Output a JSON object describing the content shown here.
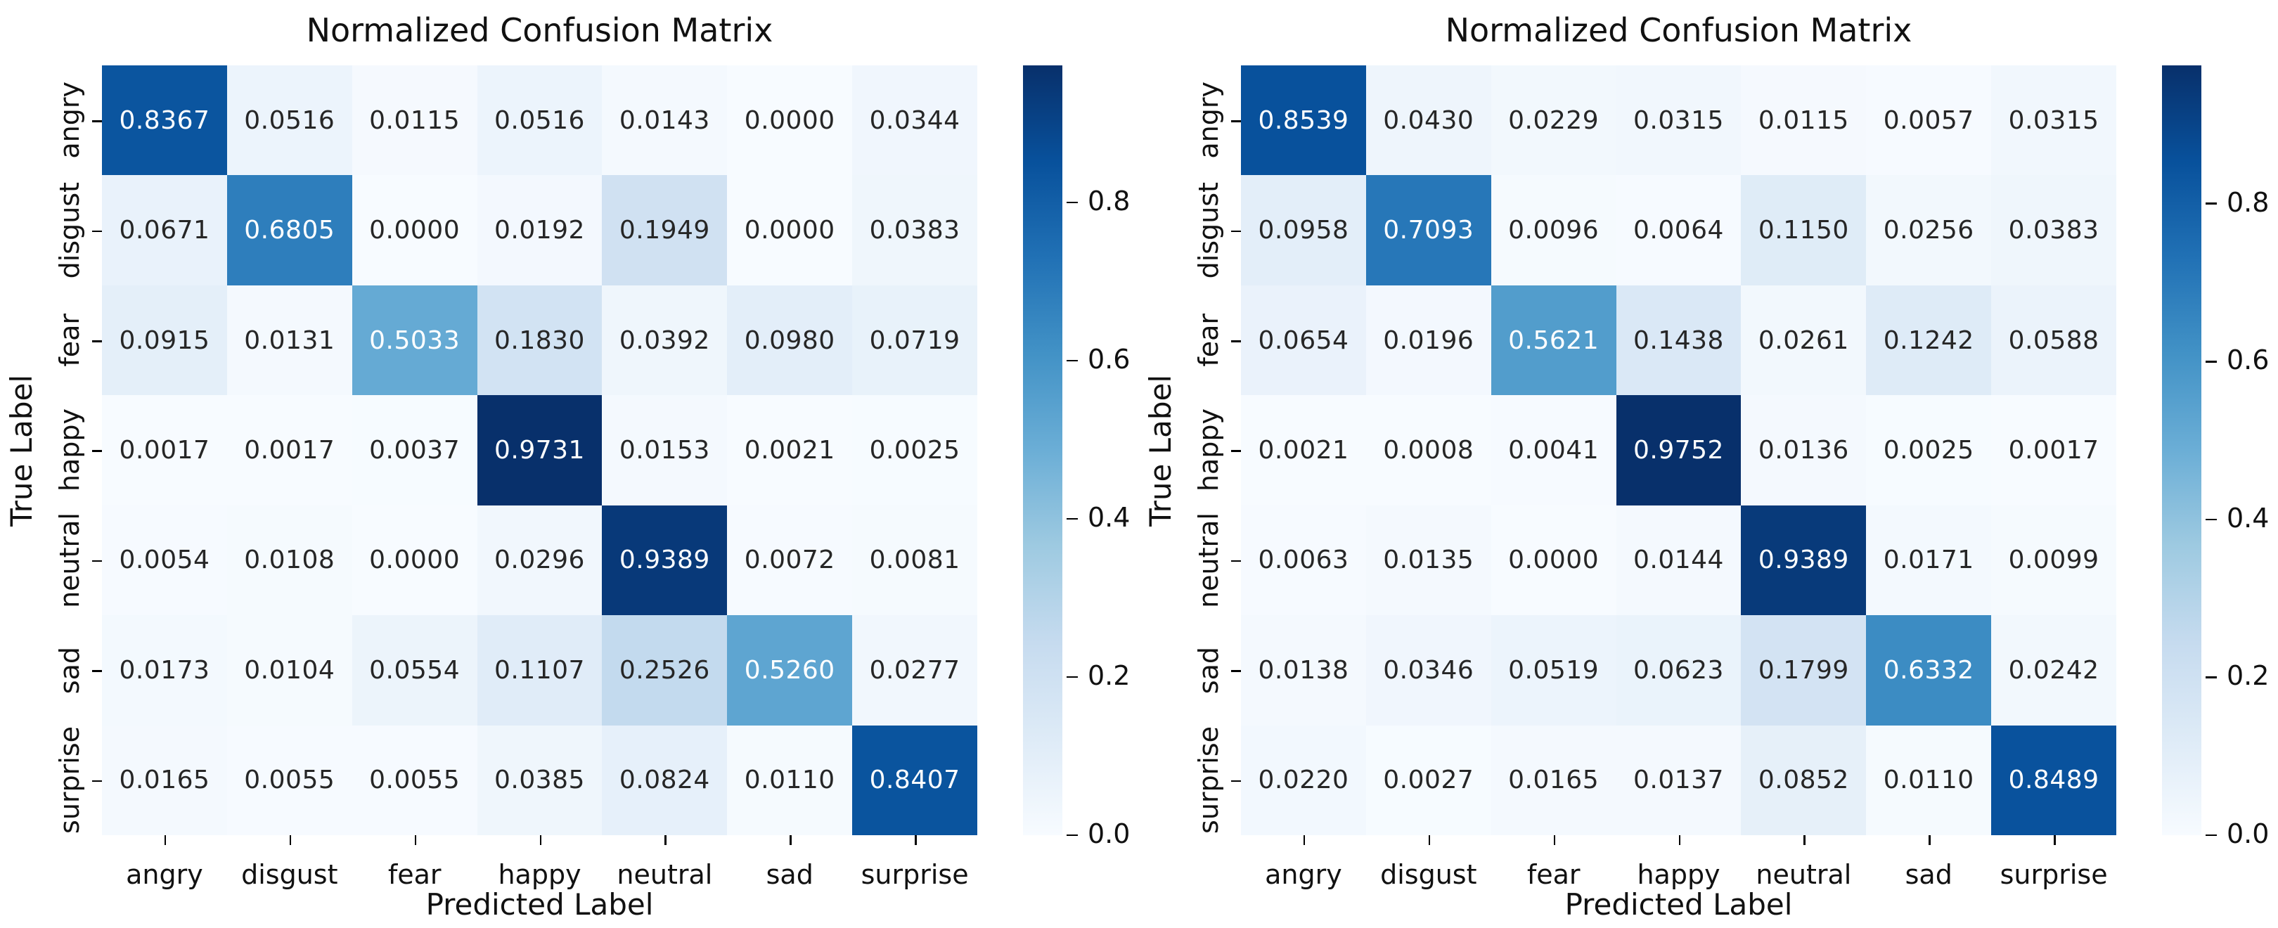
{
  "colors": {
    "colormap_anchors": [
      "#f7fbff",
      "#deebf7",
      "#c6dbef",
      "#9ecae1",
      "#6baed6",
      "#4292c6",
      "#2171b5",
      "#08519c",
      "#08306b"
    ],
    "annot_dark": "#262626",
    "annot_light": "#ffffff",
    "axis_text": "#111111"
  },
  "chart_data": [
    {
      "type": "heatmap",
      "title": "Normalized Confusion Matrix",
      "xlabel": "Predicted Label",
      "ylabel": "True Label",
      "x_categories": [
        "angry",
        "disgust",
        "fear",
        "happy",
        "neutral",
        "sad",
        "surprise"
      ],
      "y_categories": [
        "angry",
        "disgust",
        "fear",
        "happy",
        "neutral",
        "sad",
        "surprise"
      ],
      "values": [
        [
          0.8367,
          0.0516,
          0.0115,
          0.0516,
          0.0143,
          0.0,
          0.0344
        ],
        [
          0.0671,
          0.6805,
          0.0,
          0.0192,
          0.1949,
          0.0,
          0.0383
        ],
        [
          0.0915,
          0.0131,
          0.5033,
          0.183,
          0.0392,
          0.098,
          0.0719
        ],
        [
          0.0017,
          0.0017,
          0.0037,
          0.9731,
          0.0153,
          0.0021,
          0.0025
        ],
        [
          0.0054,
          0.0108,
          0.0,
          0.0296,
          0.9389,
          0.0072,
          0.0081
        ],
        [
          0.0173,
          0.0104,
          0.0554,
          0.1107,
          0.2526,
          0.526,
          0.0277
        ],
        [
          0.0165,
          0.0055,
          0.0055,
          0.0385,
          0.0824,
          0.011,
          0.8407
        ]
      ],
      "colorbar_ticks": [
        0.8,
        0.6,
        0.4,
        0.2,
        0.0
      ],
      "colormap": "Blues",
      "grid": false,
      "legend_position": "colorbar-right"
    },
    {
      "type": "heatmap",
      "title": "Normalized Confusion Matrix",
      "xlabel": "Predicted Label",
      "ylabel": "True Label",
      "x_categories": [
        "angry",
        "disgust",
        "fear",
        "happy",
        "neutral",
        "sad",
        "surprise"
      ],
      "y_categories": [
        "angry",
        "disgust",
        "fear",
        "happy",
        "neutral",
        "sad",
        "surprise"
      ],
      "values": [
        [
          0.8539,
          0.043,
          0.0229,
          0.0315,
          0.0115,
          0.0057,
          0.0315
        ],
        [
          0.0958,
          0.7093,
          0.0096,
          0.0064,
          0.115,
          0.0256,
          0.0383
        ],
        [
          0.0654,
          0.0196,
          0.5621,
          0.1438,
          0.0261,
          0.1242,
          0.0588
        ],
        [
          0.0021,
          0.0008,
          0.0041,
          0.9752,
          0.0136,
          0.0025,
          0.0017
        ],
        [
          0.0063,
          0.0135,
          0.0,
          0.0144,
          0.9389,
          0.0171,
          0.0099
        ],
        [
          0.0138,
          0.0346,
          0.0519,
          0.0623,
          0.1799,
          0.6332,
          0.0242
        ],
        [
          0.022,
          0.0027,
          0.0165,
          0.0137,
          0.0852,
          0.011,
          0.8489
        ]
      ],
      "colorbar_ticks": [
        0.8,
        0.6,
        0.4,
        0.2,
        0.0
      ],
      "colormap": "Blues",
      "grid": false,
      "legend_position": "colorbar-right"
    }
  ]
}
